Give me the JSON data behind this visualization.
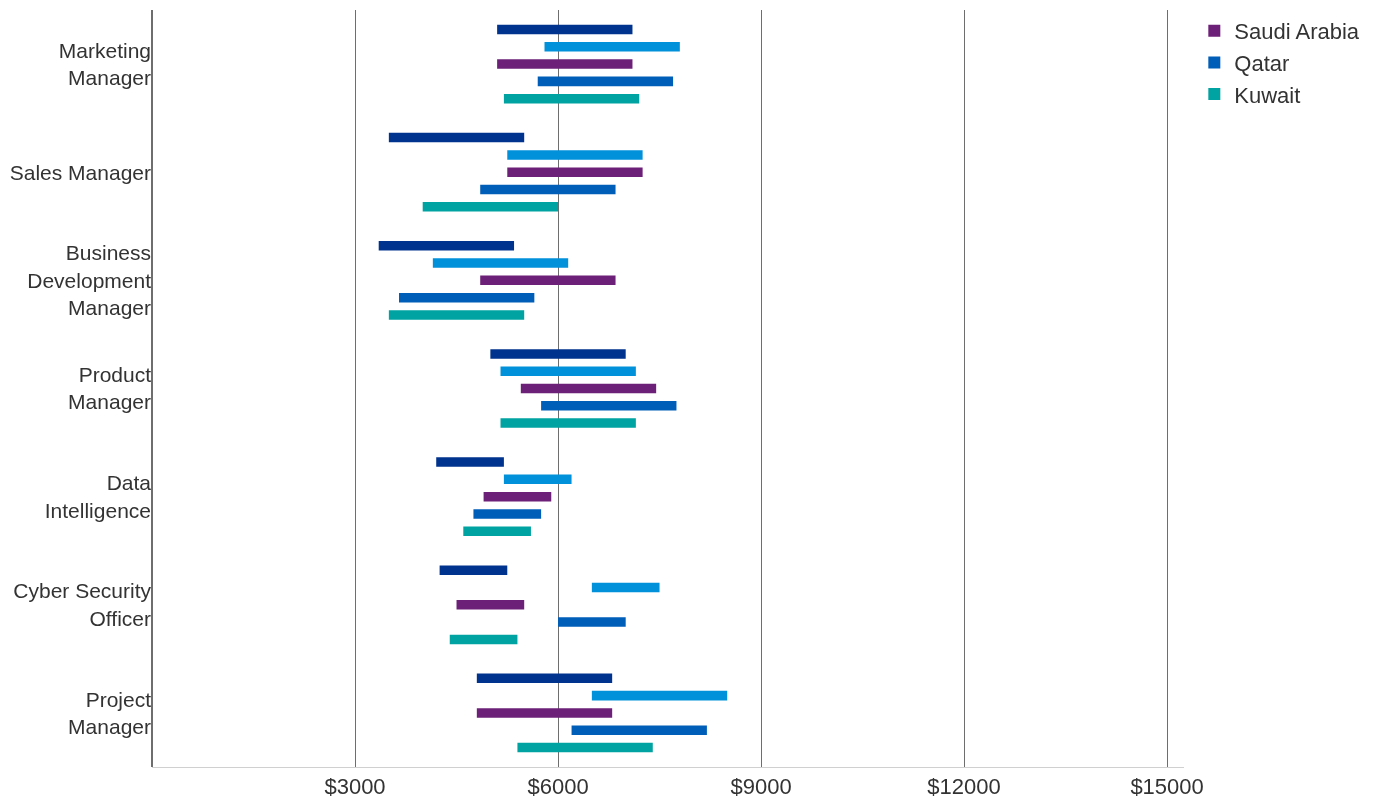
{
  "chart_data": {
    "type": "bar",
    "orientation": "horizontal",
    "categories": [
      "Marketing Manager",
      "Sales Manager",
      "Business Development Manager",
      "Product Manager",
      "Data Intelligence",
      "Cyber Security Officer",
      "Project Manager"
    ],
    "series": [
      {
        "color": "#00338d",
        "base": [
          5100,
          3500,
          3350,
          5000,
          4200,
          4250,
          4800
        ],
        "values": [
          2000,
          2000,
          2000,
          2000,
          1000,
          1000,
          2000
        ]
      },
      {
        "color": "#0091da",
        "base": [
          5800,
          5250,
          4150,
          5150,
          5200,
          6500,
          6500
        ],
        "values": [
          2000,
          2000,
          2000,
          2000,
          1000,
          1000,
          2000
        ]
      },
      {
        "name": "Saudi Arabia",
        "color": "#6d2077",
        "base": [
          5100,
          5250,
          4850,
          5450,
          4900,
          4500,
          4800
        ],
        "values": [
          2000,
          2000,
          2000,
          2000,
          1000,
          1000,
          2000
        ]
      },
      {
        "name": "Qatar",
        "color": "#005eb8",
        "base": [
          5700,
          4850,
          3650,
          5750,
          4750,
          6000,
          6200
        ],
        "values": [
          2000,
          2000,
          2000,
          2000,
          1000,
          1000,
          2000
        ]
      },
      {
        "name": "Kuwait",
        "color": "#00a3a1",
        "base": [
          5200,
          4000,
          3500,
          5150,
          4600,
          4400,
          5400
        ],
        "values": [
          2000,
          2000,
          2000,
          2000,
          1000,
          1000,
          2000
        ]
      }
    ],
    "xlim": [
      0,
      15250
    ],
    "xticks": [
      {
        "value": 3000,
        "label": "$3000"
      },
      {
        "value": 6000,
        "label": "$6000"
      },
      {
        "value": 9000,
        "label": "$9000"
      },
      {
        "value": 12000,
        "label": "$12000"
      },
      {
        "value": 15000,
        "label": "$15000"
      }
    ],
    "grid": "x",
    "legend": "top right"
  }
}
